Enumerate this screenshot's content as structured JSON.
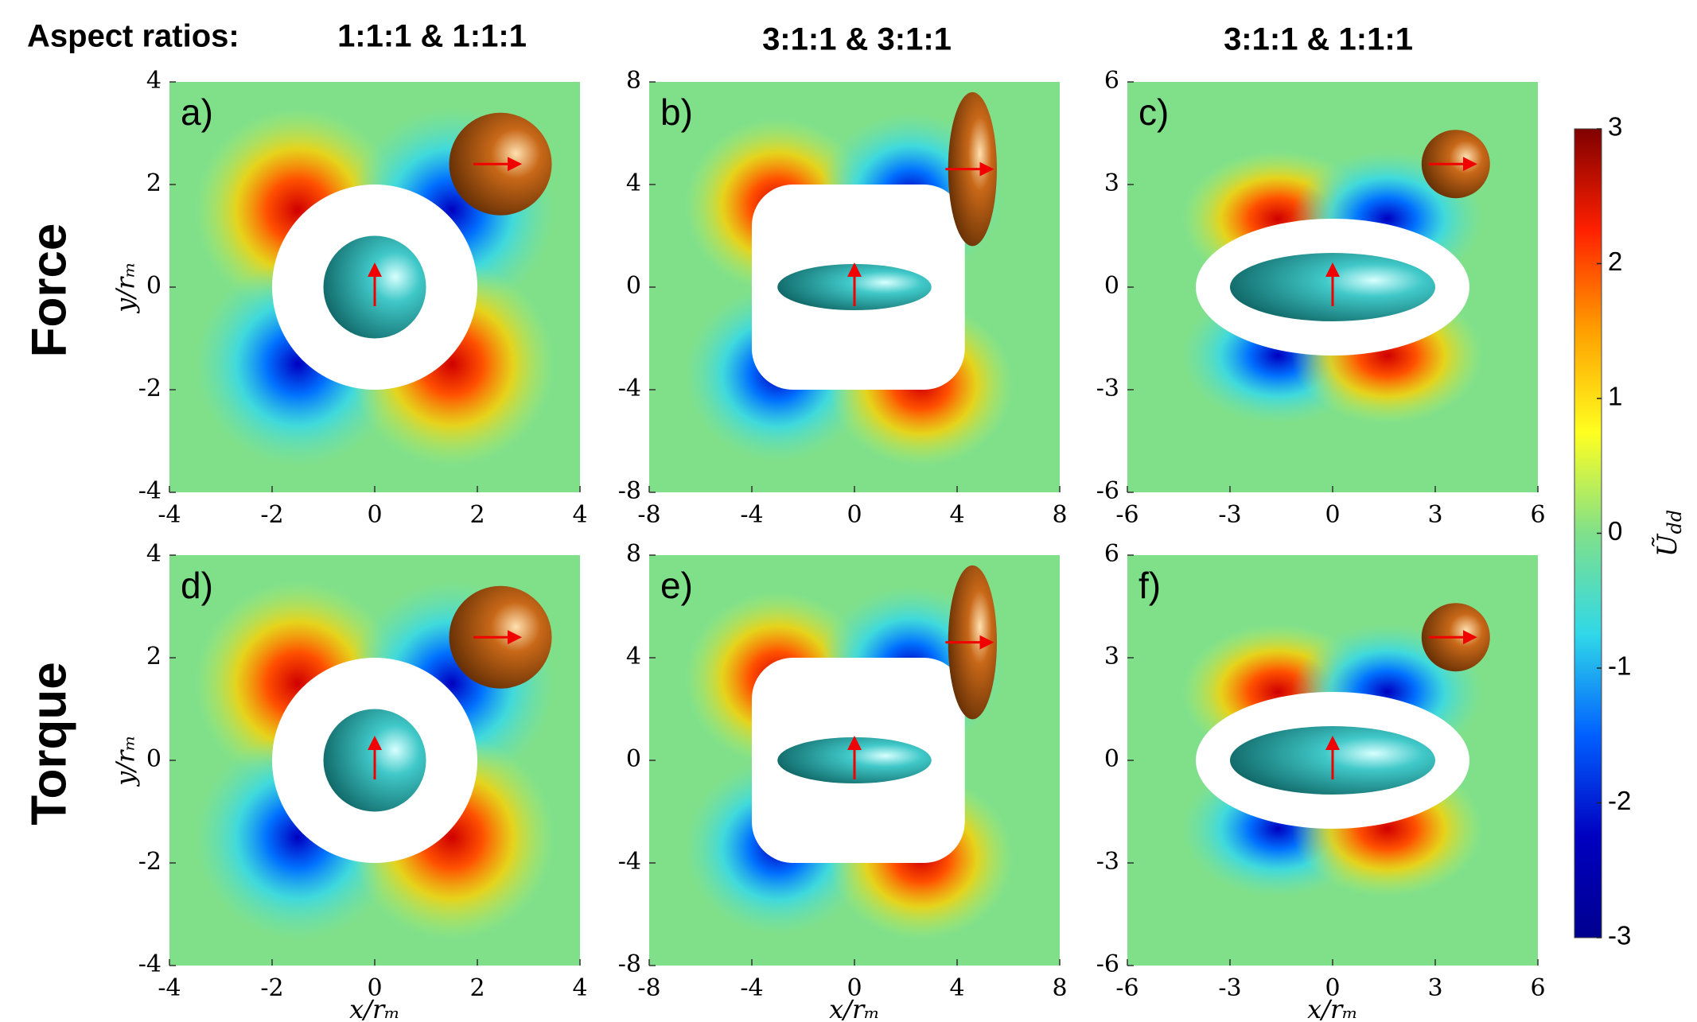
{
  "figure": {
    "heading": "Aspect ratios:",
    "columns": [
      "1:1:1 & 1:1:1",
      "3:1:1 & 3:1:1",
      "3:1:1 & 1:1:1"
    ],
    "rows": [
      "Force",
      "Torque"
    ]
  },
  "chart_data": [
    {
      "type": "heatmap",
      "label": "a)",
      "xlim": [
        -4,
        4
      ],
      "ylim": [
        -4,
        4
      ],
      "xticks": [
        -4,
        -2,
        0,
        2,
        4
      ],
      "yticks": [
        -4,
        -2,
        0,
        2,
        4
      ],
      "ylabel": "y/rₘ"
    },
    {
      "type": "heatmap",
      "label": "b)",
      "xlim": [
        -8,
        8
      ],
      "ylim": [
        -8,
        8
      ],
      "xticks": [
        -8,
        -4,
        0,
        4,
        8
      ],
      "yticks": [
        -8,
        -4,
        0,
        4,
        8
      ]
    },
    {
      "type": "heatmap",
      "label": "c)",
      "xlim": [
        -6,
        6
      ],
      "ylim": [
        -6,
        6
      ],
      "xticks": [
        -6,
        -3,
        0,
        3,
        6
      ],
      "yticks": [
        -6,
        -3,
        0,
        3,
        6
      ]
    },
    {
      "type": "heatmap",
      "label": "d)",
      "xlim": [
        -4,
        4
      ],
      "ylim": [
        -4,
        4
      ],
      "xticks": [
        -4,
        -2,
        0,
        2,
        4
      ],
      "yticks": [
        -4,
        -2,
        0,
        2,
        4
      ],
      "ylabel": "y/rₘ",
      "xlabel": "x/rₘ"
    },
    {
      "type": "heatmap",
      "label": "e)",
      "xlim": [
        -8,
        8
      ],
      "ylim": [
        -8,
        8
      ],
      "xticks": [
        -8,
        -4,
        0,
        4,
        8
      ],
      "yticks": [
        -8,
        -4,
        0,
        4,
        8
      ],
      "xlabel": "x/rₘ"
    },
    {
      "type": "heatmap",
      "label": "f)",
      "xlim": [
        -6,
        6
      ],
      "ylim": [
        -6,
        6
      ],
      "xticks": [
        -6,
        -3,
        0,
        3,
        6
      ],
      "yticks": [
        -6,
        -3,
        0,
        3,
        6
      ],
      "xlabel": "x/rₘ"
    },
    {
      "type": "colorbar",
      "ylim": [
        -3,
        3
      ],
      "yticks": [
        -3,
        -2,
        -1,
        0,
        1,
        2,
        3
      ],
      "label": "Ũ",
      "label_sub": "dd",
      "colors": [
        "#7f0000",
        "#ff2000",
        "#ffa000",
        "#ffff20",
        "#80e08a",
        "#30d8e8",
        "#0060ff",
        "#0000c0",
        "#00008f"
      ]
    }
  ]
}
